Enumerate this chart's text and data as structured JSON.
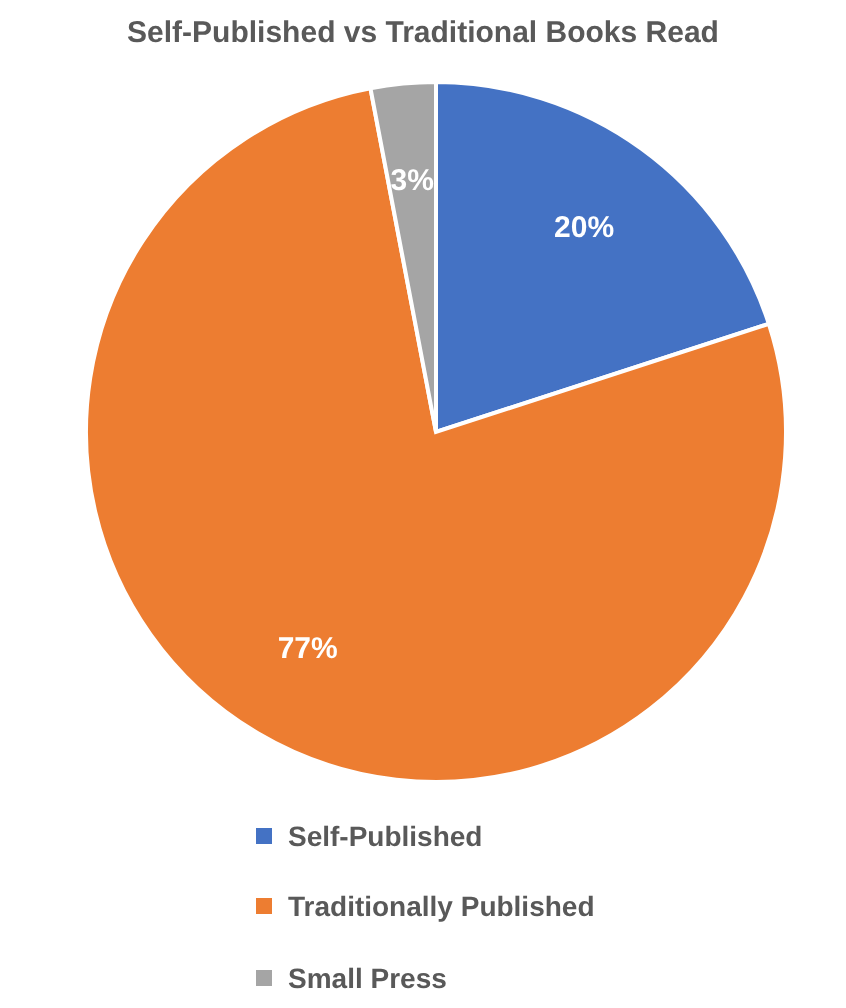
{
  "chart_data": {
    "type": "pie",
    "title": "Self-Published vs Traditional Books Read",
    "categories": [
      "Self-Published",
      "Traditionally Published",
      "Small Press"
    ],
    "values": [
      20,
      77,
      3
    ],
    "colors": [
      "#4472c4",
      "#ed7d31",
      "#a5a5a5"
    ],
    "value_labels": [
      "20%",
      "77%",
      "3%"
    ],
    "legend": "bottom"
  }
}
